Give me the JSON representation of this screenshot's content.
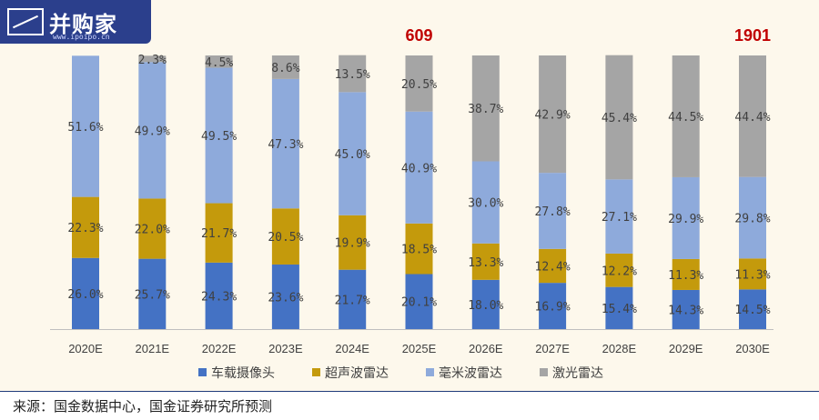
{
  "logo": {
    "name": "并购家",
    "url": "www.ipoipo.cn"
  },
  "source_note": "来源：国金数据中心，国金证券研究所预测",
  "colors": {
    "车载摄像头": "#4472c4",
    "超声波雷达": "#c49a0c",
    "毫米波雷达": "#8eaadb",
    "激光雷达": "#a5a5a5",
    "total_label": "#c00000"
  },
  "chart_data": {
    "type": "bar",
    "stacked": true,
    "percent_stacked": true,
    "categories": [
      "2020E",
      "2021E",
      "2022E",
      "2023E",
      "2024E",
      "2025E",
      "2026E",
      "2027E",
      "2028E",
      "2029E",
      "2030E"
    ],
    "series": [
      {
        "name": "车载摄像头",
        "values": [
          26.0,
          25.7,
          24.3,
          23.6,
          21.7,
          20.1,
          18.0,
          16.9,
          15.4,
          14.3,
          14.5
        ],
        "labels": [
          "26.0%",
          "25.7%",
          "24.3%",
          "23.6%",
          "21.7%",
          "20.1%",
          "18.0%",
          "16.9%",
          "15.4%",
          "14.3%",
          "14.5%"
        ]
      },
      {
        "name": "超声波雷达",
        "values": [
          22.3,
          22.0,
          21.7,
          20.5,
          19.9,
          18.5,
          13.3,
          12.4,
          12.2,
          11.3,
          11.3
        ],
        "labels": [
          "22.3%",
          "22.0%",
          "21.7%",
          "20.5%",
          "19.9%",
          "18.5%",
          "13.3%",
          "12.4%",
          "12.2%",
          "11.3%",
          "11.3%"
        ]
      },
      {
        "name": "毫米波雷达",
        "values": [
          51.6,
          49.9,
          49.5,
          47.3,
          45.0,
          40.9,
          30.0,
          27.8,
          27.1,
          29.9,
          29.8
        ],
        "labels": [
          "51.6%",
          "49.9%",
          "49.5%",
          "47.3%",
          "45.0%",
          "40.9%",
          "30.0%",
          "27.8%",
          "27.1%",
          "29.9%",
          "29.8%"
        ]
      },
      {
        "name": "激光雷达",
        "values": [
          0,
          2.3,
          4.5,
          8.6,
          13.5,
          20.5,
          38.7,
          42.9,
          45.4,
          44.5,
          44.4
        ],
        "labels": [
          "",
          "2.3%",
          "4.5%",
          "8.6%",
          "13.5%",
          "20.5%",
          "38.7%",
          "42.9%",
          "45.4%",
          "44.5%",
          "44.4%"
        ]
      }
    ],
    "totals": [
      {
        "category": "2025E",
        "label": "609"
      },
      {
        "category": "2030E",
        "label": "1901"
      }
    ],
    "ylim": [
      0,
      100
    ],
    "legend_position": "bottom",
    "grid": false
  }
}
